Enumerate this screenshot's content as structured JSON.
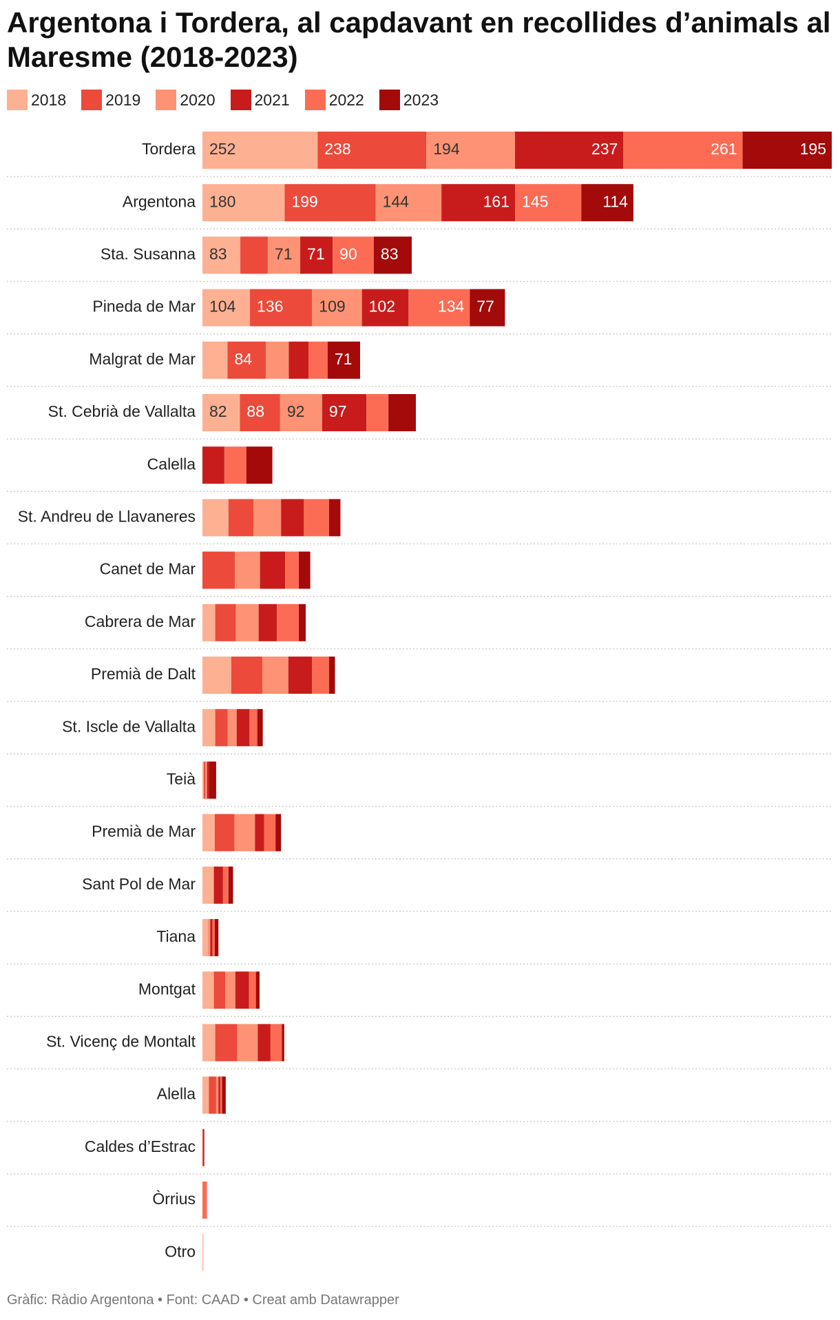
{
  "title": "Argentona i Tordera, al capdavant en recollides d’animals al Maresme (2018-2023)",
  "footer": "Gràfic: Ràdio Argentona • Font: CAAD • Creat amb Datawrapper",
  "chart_data": {
    "type": "bar",
    "orientation": "horizontal",
    "stacked": true,
    "title": "Argentona i Tordera, al capdavant en recollides d’animals al Maresme (2018-2023)",
    "xlabel": "",
    "ylabel": "",
    "legend_position": "top-left",
    "categories": [
      "Tordera",
      "Argentona",
      "Sta. Susanna",
      "Pineda de Mar",
      "Malgrat de Mar",
      "St. Cebrià de Vallalta",
      "Calella",
      "St. Andreu de Llavaneres",
      "Canet de Mar",
      "Cabrera de Mar",
      "Premià de Dalt",
      "St. Iscle de Vallalta",
      "Teià",
      "Premià de Mar",
      "Sant Pol de Mar",
      "Tiana",
      "Montgat",
      "St. Vicenç de Montalt",
      "Alella",
      "Caldes d’Estrac",
      "Òrrius",
      "Otro"
    ],
    "series": [
      {
        "name": "2018",
        "color": "#fdb092",
        "text_color": "#333333",
        "values": [
          252,
          180,
          83,
          104,
          55,
          82,
          0,
          57,
          0,
          28,
          63,
          28,
          3,
          27,
          25,
          12,
          25,
          28,
          14,
          0,
          0,
          2
        ],
        "labels": [
          "252",
          "180",
          "83",
          "104",
          "",
          "82",
          "",
          "",
          "",
          "",
          "",
          "",
          "",
          "",
          "",
          "",
          "",
          "",
          "",
          "",
          "",
          ""
        ]
      },
      {
        "name": "2019",
        "color": "#ec4a3b",
        "text_color": "#ffffff",
        "values": [
          238,
          199,
          60,
          136,
          84,
          88,
          0,
          55,
          71,
          45,
          68,
          27,
          3,
          43,
          0,
          0,
          25,
          48,
          16,
          2,
          0,
          0
        ],
        "labels": [
          "238",
          "199",
          "",
          "136",
          "84",
          "88",
          "",
          "",
          "",
          "",
          "",
          "",
          "",
          "",
          "",
          "",
          "",
          "",
          "",
          "",
          "",
          ""
        ]
      },
      {
        "name": "2020",
        "color": "#fd9374",
        "text_color": "#333333",
        "values": [
          194,
          144,
          71,
          109,
          50,
          92,
          0,
          60,
          55,
          50,
          57,
          20,
          4,
          45,
          0,
          5,
          22,
          45,
          5,
          0,
          0,
          0
        ],
        "labels": [
          "194",
          "144",
          "71",
          "109",
          "",
          "92",
          "",
          "",
          "",
          "",
          "",
          "",
          "",
          "",
          "",
          "",
          "",
          "",
          "",
          "",
          "",
          ""
        ]
      },
      {
        "name": "2021",
        "color": "#c81c1c",
        "text_color": "#ffffff",
        "values": [
          237,
          161,
          71,
          102,
          43,
          97,
          48,
          50,
          55,
          40,
          52,
          28,
          5,
          20,
          20,
          5,
          30,
          28,
          4,
          0,
          0,
          0
        ],
        "labels": [
          "237",
          "161",
          "71",
          "102",
          "",
          "97",
          "",
          "",
          "",
          "",
          "",
          "",
          "",
          "",
          "",
          "",
          "",
          "",
          "",
          "",
          "",
          ""
        ]
      },
      {
        "name": "2022",
        "color": "#fc6c54",
        "text_color": "#ffffff",
        "values": [
          261,
          145,
          90,
          134,
          42,
          48,
          48,
          55,
          30,
          48,
          37,
          17,
          0,
          25,
          12,
          5,
          15,
          25,
          4,
          0,
          10,
          0
        ],
        "labels": [
          "261",
          "145",
          "90",
          "134",
          "",
          "",
          "",
          "",
          "",
          "",
          "",
          "",
          "",
          "",
          "",
          "",
          "",
          "",
          "",
          "",
          "",
          ""
        ]
      },
      {
        "name": "2023",
        "color": "#a30a0a",
        "text_color": "#ffffff",
        "values": [
          195,
          114,
          83,
          77,
          71,
          60,
          57,
          25,
          25,
          15,
          13,
          12,
          15,
          12,
          10,
          8,
          8,
          5,
          8,
          2,
          0,
          0
        ],
        "labels": [
          "195",
          "114",
          "83",
          "77",
          "71",
          "",
          "",
          "",
          "",
          "",
          "",
          "",
          "",
          "",
          "",
          "",
          "",
          "",
          "",
          "",
          "",
          ""
        ]
      }
    ]
  }
}
